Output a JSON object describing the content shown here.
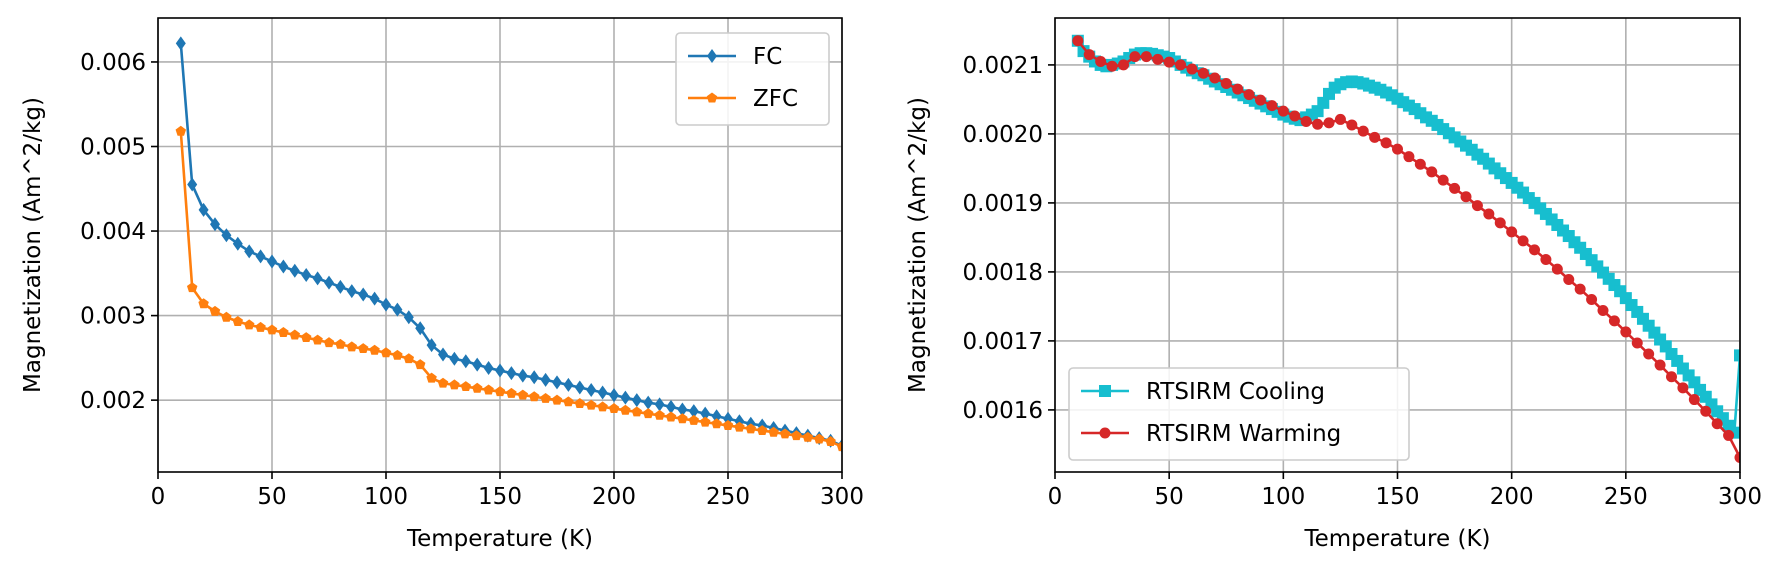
{
  "chart_data": [
    {
      "type": "line",
      "title": "",
      "xlabel": "Temperature (K)",
      "ylabel": "Magnetization (Am^2/kg)",
      "xlim": [
        0,
        300
      ],
      "ylim": [
        0.00115,
        0.00652
      ],
      "xticks": [
        0,
        50,
        100,
        150,
        200,
        250,
        300
      ],
      "xtick_labels": [
        "0",
        "50",
        "100",
        "150",
        "200",
        "250",
        "300"
      ],
      "yticks": [
        0.002,
        0.003,
        0.004,
        0.005,
        0.006
      ],
      "ytick_labels": [
        "0.002",
        "0.003",
        "0.004",
        "0.005",
        "0.006"
      ],
      "grid": true,
      "legend_position": "top-right",
      "x": [
        10,
        15,
        20,
        25,
        30,
        35,
        40,
        45,
        50,
        55,
        60,
        65,
        70,
        75,
        80,
        85,
        90,
        95,
        100,
        105,
        110,
        115,
        120,
        125,
        130,
        135,
        140,
        145,
        150,
        155,
        160,
        165,
        170,
        175,
        180,
        185,
        190,
        195,
        200,
        205,
        210,
        215,
        220,
        225,
        230,
        235,
        240,
        245,
        250,
        255,
        260,
        265,
        270,
        275,
        280,
        285,
        290,
        295,
        300
      ],
      "series": [
        {
          "name": "FC",
          "color": "#1f77b4",
          "marker": "diamond",
          "values": [
            0.00622,
            0.00455,
            0.00425,
            0.00408,
            0.00395,
            0.00385,
            0.00376,
            0.0037,
            0.00364,
            0.00358,
            0.00353,
            0.00348,
            0.00344,
            0.00339,
            0.00334,
            0.00329,
            0.00325,
            0.0032,
            0.00313,
            0.00307,
            0.00298,
            0.00285,
            0.00265,
            0.00254,
            0.00249,
            0.00246,
            0.00242,
            0.00238,
            0.00235,
            0.00232,
            0.00229,
            0.00227,
            0.00224,
            0.00221,
            0.00218,
            0.00215,
            0.00212,
            0.00209,
            0.00206,
            0.00203,
            0.002,
            0.00197,
            0.00195,
            0.00192,
            0.00189,
            0.00187,
            0.00184,
            0.00181,
            0.00178,
            0.00175,
            0.00172,
            0.0017,
            0.00167,
            0.00164,
            0.00161,
            0.00158,
            0.00155,
            0.00152,
            0.00146
          ]
        },
        {
          "name": "ZFC",
          "color": "#ff7f0e",
          "marker": "pentagon",
          "values": [
            0.00518,
            0.00333,
            0.00314,
            0.00305,
            0.00298,
            0.00293,
            0.00289,
            0.00286,
            0.00283,
            0.0028,
            0.00277,
            0.00274,
            0.00271,
            0.00268,
            0.00266,
            0.00263,
            0.00261,
            0.00259,
            0.00256,
            0.00253,
            0.00249,
            0.00242,
            0.00226,
            0.0022,
            0.00218,
            0.00216,
            0.00214,
            0.00212,
            0.0021,
            0.00208,
            0.00206,
            0.00204,
            0.00202,
            0.002,
            0.00198,
            0.00196,
            0.00194,
            0.00192,
            0.0019,
            0.00188,
            0.00186,
            0.00184,
            0.00182,
            0.0018,
            0.00178,
            0.00176,
            0.00174,
            0.00172,
            0.0017,
            0.00168,
            0.00166,
            0.00164,
            0.00162,
            0.0016,
            0.00158,
            0.00156,
            0.00154,
            0.00151,
            0.00145
          ]
        }
      ]
    },
    {
      "type": "line",
      "title": "",
      "xlabel": "Temperature (K)",
      "ylabel": "Magnetization (Am^2/kg)",
      "xlim": [
        0,
        300
      ],
      "ylim": [
        0.00151,
        0.002168
      ],
      "xticks": [
        0,
        50,
        100,
        150,
        200,
        250,
        300
      ],
      "xtick_labels": [
        "0",
        "50",
        "100",
        "150",
        "200",
        "250",
        "300"
      ],
      "yticks": [
        0.0016,
        0.0017,
        0.0018,
        0.0019,
        0.002,
        0.0021
      ],
      "ytick_labels": [
        "0.0016",
        "0.0017",
        "0.0018",
        "0.0019",
        "0.0020",
        "0.0021"
      ],
      "grid": true,
      "legend_position": "bottom-left",
      "series": [
        {
          "name": "RTSIRM Cooling",
          "color": "#17becf",
          "marker": "square",
          "x": [
            10,
            12.5,
            15,
            17.5,
            20,
            22.5,
            25,
            27.5,
            30,
            32.5,
            35,
            37.5,
            40,
            42.5,
            45,
            47.5,
            50,
            52.5,
            55,
            57.5,
            60,
            62.5,
            65,
            67.5,
            70,
            72.5,
            75,
            77.5,
            80,
            82.5,
            85,
            87.5,
            90,
            92.5,
            95,
            97.5,
            100,
            102.5,
            105,
            107.5,
            110,
            112.5,
            115,
            117.5,
            120,
            122.5,
            125,
            127.5,
            130,
            132.5,
            135,
            137.5,
            140,
            142.5,
            145,
            147.5,
            150,
            152.5,
            155,
            157.5,
            160,
            162.5,
            165,
            167.5,
            170,
            172.5,
            175,
            177.5,
            180,
            182.5,
            185,
            187.5,
            190,
            192.5,
            195,
            197.5,
            200,
            202.5,
            205,
            207.5,
            210,
            212.5,
            215,
            217.5,
            220,
            222.5,
            225,
            227.5,
            230,
            232.5,
            235,
            237.5,
            240,
            242.5,
            245,
            247.5,
            250,
            252.5,
            255,
            257.5,
            260,
            262.5,
            265,
            267.5,
            270,
            272.5,
            275,
            277.5,
            280,
            282.5,
            285,
            287.5,
            290,
            292.5,
            295,
            297.5,
            300
          ],
          "values": [
            0.002135,
            0.00212,
            0.002112,
            0.002105,
            0.0021,
            0.002098,
            0.0021,
            0.002102,
            0.002105,
            0.00211,
            0.002115,
            0.002117,
            0.002117,
            0.002116,
            0.002114,
            0.002112,
            0.00211,
            0.002105,
            0.0021,
            0.002096,
            0.002092,
            0.002088,
            0.002085,
            0.00208,
            0.002076,
            0.002072,
            0.002068,
            0.002064,
            0.00206,
            0.002056,
            0.002052,
            0.002048,
            0.002044,
            0.00204,
            0.002036,
            0.002032,
            0.002028,
            0.002025,
            0.002022,
            0.00202,
            0.002024,
            0.002028,
            0.002033,
            0.002045,
            0.002058,
            0.002067,
            0.002072,
            0.002075,
            0.002076,
            0.002075,
            0.002073,
            0.00207,
            0.002067,
            0.002064,
            0.00206,
            0.002056,
            0.002051,
            0.002046,
            0.002041,
            0.002036,
            0.00203,
            0.002024,
            0.002019,
            0.002013,
            0.002007,
            0.002001,
            0.001995,
            0.001989,
            0.001983,
            0.001977,
            0.00197,
            0.001964,
            0.001957,
            0.00195,
            0.001943,
            0.001936,
            0.001929,
            0.001922,
            0.001915,
            0.001907,
            0.0019,
            0.001892,
            0.001884,
            0.001876,
            0.001868,
            0.00186,
            0.001852,
            0.001843,
            0.001835,
            0.001826,
            0.001817,
            0.001808,
            0.001799,
            0.00179,
            0.001781,
            0.001772,
            0.001762,
            0.001752,
            0.001742,
            0.001732,
            0.001722,
            0.001712,
            0.001702,
            0.001692,
            0.001681,
            0.001671,
            0.00166,
            0.00165,
            0.00164,
            0.001629,
            0.001619,
            0.001608,
            0.001598,
            0.001588,
            0.001577,
            0.001567,
            0.001679
          ]
        },
        {
          "name": "RTSIRM Warming",
          "color": "#d62728",
          "marker": "circle",
          "x": [
            10,
            15,
            20,
            25,
            30,
            35,
            40,
            45,
            50,
            55,
            60,
            65,
            70,
            75,
            80,
            85,
            90,
            95,
            100,
            105,
            110,
            115,
            120,
            125,
            130,
            135,
            140,
            145,
            150,
            155,
            160,
            165,
            170,
            175,
            180,
            185,
            190,
            195,
            200,
            205,
            210,
            215,
            220,
            225,
            230,
            235,
            240,
            245,
            250,
            255,
            260,
            265,
            270,
            275,
            280,
            285,
            290,
            295,
            300
          ],
          "values": [
            0.002135,
            0.002115,
            0.002105,
            0.002098,
            0.0021,
            0.002112,
            0.002112,
            0.002108,
            0.002104,
            0.0021,
            0.002094,
            0.002088,
            0.002081,
            0.002073,
            0.002065,
            0.002057,
            0.002049,
            0.002041,
            0.002033,
            0.002026,
            0.002018,
            0.002014,
            0.002016,
            0.002021,
            0.002013,
            0.002004,
            0.001995,
            0.001987,
            0.001978,
            0.001967,
            0.001956,
            0.001945,
            0.001933,
            0.001921,
            0.001909,
            0.001896,
            0.001884,
            0.001871,
            0.001858,
            0.001845,
            0.001832,
            0.001818,
            0.001804,
            0.001789,
            0.001775,
            0.00176,
            0.001744,
            0.001729,
            0.001713,
            0.001697,
            0.001681,
            0.001665,
            0.001648,
            0.001632,
            0.001615,
            0.001598,
            0.00158,
            0.001563,
            0.001531
          ]
        }
      ]
    }
  ]
}
